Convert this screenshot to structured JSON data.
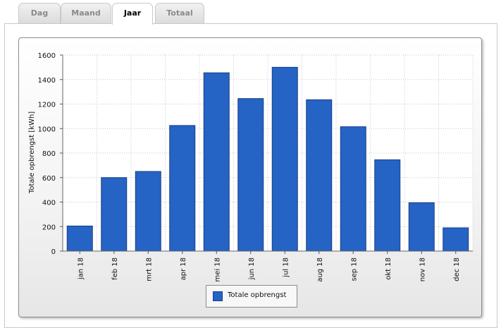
{
  "tabs": [
    {
      "label": "Dag",
      "active": false
    },
    {
      "label": "Maand",
      "active": false
    },
    {
      "label": "Jaar",
      "active": true
    },
    {
      "label": "Totaal",
      "active": false
    }
  ],
  "colors": {
    "bar": "#2563c4",
    "bar_edge": "#1a3f86",
    "grid": "#c8c8c8"
  },
  "chart_data": {
    "type": "bar",
    "title": "",
    "xlabel": "",
    "ylabel": "Totale opbrengst [kWh]",
    "categories": [
      "jan 18",
      "feb 18",
      "mrt 18",
      "apr 18",
      "mei 18",
      "jun 18",
      "jul 18",
      "aug 18",
      "sep 18",
      "okt 18",
      "nov 18",
      "dec 18"
    ],
    "series": [
      {
        "name": "Totale opbrengst",
        "values": [
          205,
          600,
          650,
          1025,
          1455,
          1245,
          1500,
          1235,
          1015,
          745,
          395,
          190
        ]
      }
    ],
    "ylim": [
      0,
      1600
    ],
    "yticks": [
      0,
      200,
      400,
      600,
      800,
      1000,
      1200,
      1400,
      1600
    ],
    "grid": true,
    "legend_position": "bottom"
  }
}
